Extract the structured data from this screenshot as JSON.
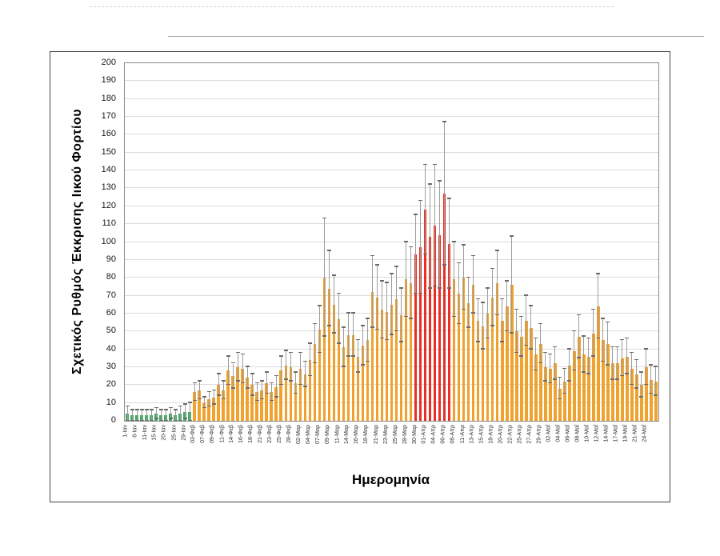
{
  "chart_data": {
    "type": "bar",
    "title": "",
    "xlabel": "Ημερομηνία",
    "ylabel": "Σχετικός Ρυθμός Έκκρισης Ιικού Φορτίου",
    "ylim": [
      0,
      200
    ],
    "ytick_step": 10,
    "grid": true,
    "legend": "none",
    "error_bars": "symmetric",
    "colors": {
      "green": "#41A862",
      "orange": "#F0A22E",
      "red": "#EB2D23",
      "whisker_line": "#9d9d9d",
      "whisker_cap": "#6b6b6b"
    },
    "bars_format": [
      "label",
      "value",
      "error_top",
      "color"
    ],
    "bars": [
      [
        "1-Ιαν",
        4,
        8,
        "green"
      ],
      [
        "",
        3,
        6,
        "green"
      ],
      [
        "6-Ιαν",
        3,
        6,
        "green"
      ],
      [
        "",
        3,
        6,
        "green"
      ],
      [
        "11-Ιαν",
        3,
        6,
        "green"
      ],
      [
        "",
        3,
        6,
        "green"
      ],
      [
        "15-Ιαν",
        4,
        7,
        "green"
      ],
      [
        "",
        3,
        6,
        "green"
      ],
      [
        "20-Ιαν",
        3,
        6,
        "green"
      ],
      [
        "",
        4,
        7,
        "green"
      ],
      [
        "25-Ιαν",
        3,
        6,
        "green"
      ],
      [
        "",
        4,
        8,
        "green"
      ],
      [
        "29-Ιαν",
        5,
        9,
        "green"
      ],
      [
        "",
        5,
        10,
        "green"
      ],
      [
        "03-Φεβ",
        16,
        21,
        "orange"
      ],
      [
        "",
        17,
        22,
        "orange"
      ],
      [
        "07-Φεβ",
        10,
        13,
        "orange"
      ],
      [
        "",
        12,
        16,
        "orange"
      ],
      [
        "09-Φεβ",
        13,
        17,
        "orange"
      ],
      [
        "",
        20,
        26,
        "orange"
      ],
      [
        "11-Φεβ",
        17,
        22,
        "orange"
      ],
      [
        "",
        28,
        36,
        "orange"
      ],
      [
        "14-Φεβ",
        25,
        32,
        "orange"
      ],
      [
        "",
        30,
        38,
        "orange"
      ],
      [
        "16-Φεβ",
        29,
        37,
        "orange"
      ],
      [
        "",
        24,
        30,
        "orange"
      ],
      [
        "18-Φεβ",
        20,
        26,
        "orange"
      ],
      [
        "",
        16,
        21,
        "orange"
      ],
      [
        "21-Φεβ",
        17,
        22,
        "orange"
      ],
      [
        "",
        21,
        27,
        "orange"
      ],
      [
        "23-Φεβ",
        16,
        21,
        "orange"
      ],
      [
        "",
        19,
        25,
        "orange"
      ],
      [
        "25-Φεβ",
        28,
        36,
        "orange"
      ],
      [
        "",
        31,
        39,
        "orange"
      ],
      [
        "28-Φεβ",
        30,
        38,
        "orange"
      ],
      [
        "",
        21,
        27,
        "orange"
      ],
      [
        "02-Μαρ",
        29,
        38,
        "orange"
      ],
      [
        "",
        26,
        33,
        "orange"
      ],
      [
        "04-Μαρ",
        34,
        43,
        "orange"
      ],
      [
        "",
        43,
        54,
        "orange"
      ],
      [
        "07-Μαρ",
        51,
        64,
        "orange"
      ],
      [
        "",
        80,
        113,
        "orange"
      ],
      [
        "09-Μαρ",
        74,
        95,
        "orange"
      ],
      [
        "",
        65,
        81,
        "orange"
      ],
      [
        "11-Μαρ",
        57,
        71,
        "orange"
      ],
      [
        "",
        41,
        52,
        "orange"
      ],
      [
        "14-Μαρ",
        48,
        60,
        "orange"
      ],
      [
        "",
        48,
        60,
        "orange"
      ],
      [
        "16-Μαρ",
        36,
        45,
        "orange"
      ],
      [
        "",
        42,
        53,
        "orange"
      ],
      [
        "18-Μαρ",
        45,
        57,
        "orange"
      ],
      [
        "",
        72,
        92,
        "orange"
      ],
      [
        "21-Μαρ",
        69,
        87,
        "orange"
      ],
      [
        "",
        62,
        78,
        "orange"
      ],
      [
        "23-Μαρ",
        61,
        77,
        "orange"
      ],
      [
        "",
        65,
        82,
        "orange"
      ],
      [
        "25-Μαρ",
        68,
        86,
        "orange"
      ],
      [
        "",
        59,
        74,
        "orange"
      ],
      [
        "28-Μαρ",
        79,
        100,
        "orange"
      ],
      [
        "",
        77,
        97,
        "orange"
      ],
      [
        "30-Μαρ",
        93,
        115,
        "red"
      ],
      [
        "",
        97,
        123,
        "red"
      ],
      [
        "01-Απρ",
        118,
        143,
        "red"
      ],
      [
        "",
        103,
        132,
        "red"
      ],
      [
        "04-Απρ",
        109,
        143,
        "red"
      ],
      [
        "",
        104,
        134,
        "red"
      ],
      [
        "06-Απρ",
        127,
        167,
        "red"
      ],
      [
        "",
        99,
        124,
        "red"
      ],
      [
        "08-Απρ",
        79,
        100,
        "orange"
      ],
      [
        "",
        71,
        88,
        "orange"
      ],
      [
        "11-Απρ",
        80,
        98,
        "orange"
      ],
      [
        "",
        66,
        80,
        "orange"
      ],
      [
        "13-Απρ",
        76,
        92,
        "orange"
      ],
      [
        "",
        56,
        68,
        "orange"
      ],
      [
        "15-Απρ",
        53,
        66,
        "orange"
      ],
      [
        "",
        60,
        74,
        "orange"
      ],
      [
        "18-Απρ",
        69,
        85,
        "orange"
      ],
      [
        "",
        77,
        95,
        "orange"
      ],
      [
        "20-Απρ",
        56,
        68,
        "orange"
      ],
      [
        "",
        64,
        78,
        "orange"
      ],
      [
        "22-Απρ",
        76,
        103,
        "orange"
      ],
      [
        "",
        50,
        62,
        "orange"
      ],
      [
        "25-Απρ",
        47,
        58,
        "orange"
      ],
      [
        "",
        56,
        70,
        "orange"
      ],
      [
        "27-Απρ",
        52,
        64,
        "orange"
      ],
      [
        "",
        37,
        46,
        "orange"
      ],
      [
        "29-Απρ",
        43,
        54,
        "orange"
      ],
      [
        "",
        30,
        38,
        "orange"
      ],
      [
        "02-Μαΐ",
        29,
        37,
        "orange"
      ],
      [
        "",
        32,
        41,
        "orange"
      ],
      [
        "04-Μαΐ",
        18,
        24,
        "orange"
      ],
      [
        "",
        22,
        29,
        "orange"
      ],
      [
        "06-Μαΐ",
        31,
        40,
        "orange"
      ],
      [
        "",
        39,
        50,
        "orange"
      ],
      [
        "08-Μαΐ",
        47,
        59,
        "orange"
      ],
      [
        "",
        37,
        47,
        "orange"
      ],
      [
        "10-Μαΐ",
        36,
        46,
        "orange"
      ],
      [
        "",
        49,
        62,
        "orange"
      ],
      [
        "12-Μαΐ",
        64,
        82,
        "orange"
      ],
      [
        "",
        45,
        57,
        "orange"
      ],
      [
        "14-Μαΐ",
        43,
        55,
        "orange"
      ],
      [
        "",
        32,
        41,
        "orange"
      ],
      [
        "17-Μαΐ",
        32,
        41,
        "orange"
      ],
      [
        "",
        35,
        45,
        "orange"
      ],
      [
        "19-Μαΐ",
        36,
        46,
        "orange"
      ],
      [
        "",
        29,
        38,
        "orange"
      ],
      [
        "21-Μαΐ",
        26,
        34,
        "orange"
      ],
      [
        "",
        20,
        27,
        "orange"
      ],
      [
        "24-Μαΐ",
        30,
        40,
        "orange"
      ],
      [
        "",
        23,
        31,
        "orange"
      ],
      [
        "",
        22,
        30,
        "orange"
      ]
    ]
  }
}
